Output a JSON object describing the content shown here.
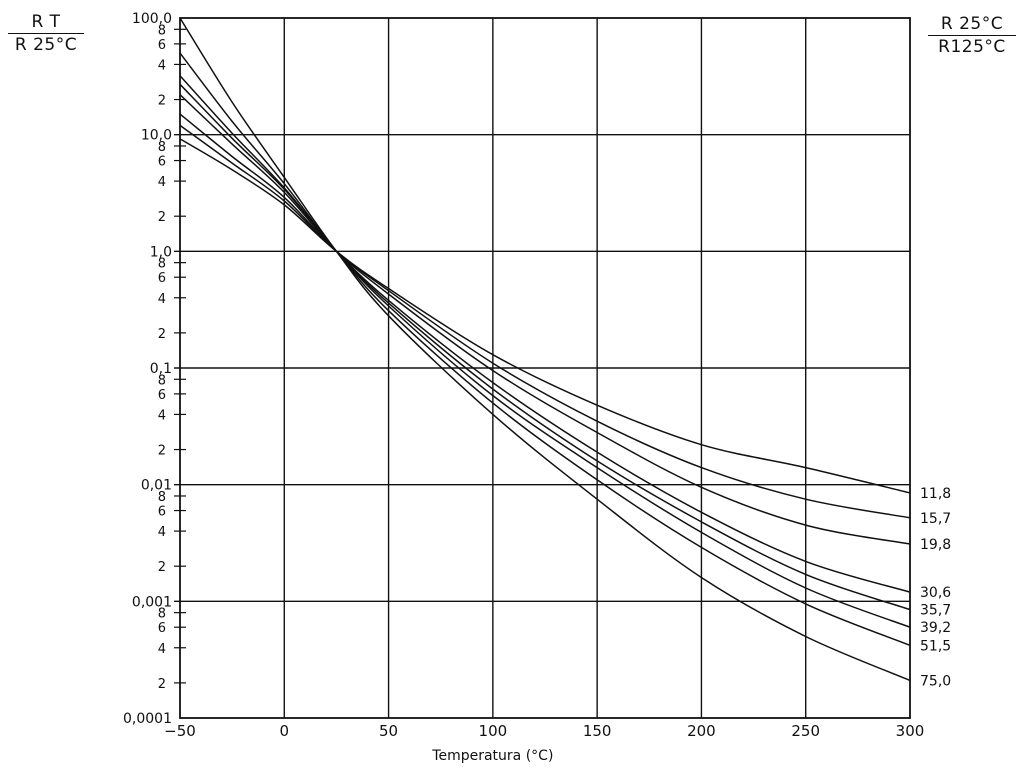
{
  "chart_data": {
    "type": "line",
    "xlabel": "Temperatura (°C)",
    "x_ticks": [
      -50,
      0,
      50,
      100,
      150,
      200,
      250,
      300
    ],
    "x_tick_labels": [
      "−50",
      "0",
      "50",
      "100",
      "150",
      "200",
      "250",
      "300"
    ],
    "xlim": [
      -50,
      300
    ],
    "ylim": [
      0.0001,
      100
    ],
    "y_scale": "log",
    "y_decade_labels": [
      {
        "value": 100,
        "label": "100,0"
      },
      {
        "value": 10,
        "label": "10,0"
      },
      {
        "value": 1,
        "label": "1,0"
      },
      {
        "value": 0.1,
        "label": "0,1"
      },
      {
        "value": 0.01,
        "label": "0,01"
      },
      {
        "value": 0.001,
        "label": "0,001"
      },
      {
        "value": 0.0001,
        "label": "0,0001"
      }
    ],
    "y_minor_labels": [
      "8",
      "6",
      "4",
      "2"
    ],
    "y_minor_values": [
      8,
      6,
      4,
      2
    ],
    "left_axis_title": {
      "numerator": "R T",
      "denominator": "R 25°C"
    },
    "right_axis_title": {
      "numerator": "R 25°C",
      "denominator": "R125°C"
    },
    "grid": true,
    "series": [
      {
        "name": "11,8",
        "x": [
          -50,
          -25,
          0,
          25,
          50,
          100,
          150,
          200,
          250,
          300
        ],
        "y": [
          9.2,
          5.0,
          2.5,
          1.0,
          0.48,
          0.13,
          0.048,
          0.022,
          0.014,
          0.0085
        ]
      },
      {
        "name": "15,7",
        "x": [
          -50,
          -25,
          0,
          25,
          50,
          100,
          150,
          200,
          250,
          300
        ],
        "y": [
          12,
          5.7,
          2.7,
          1.0,
          0.46,
          0.11,
          0.035,
          0.014,
          0.0075,
          0.0052
        ]
      },
      {
        "name": "19,8",
        "x": [
          -50,
          -25,
          0,
          25,
          50,
          100,
          150,
          200,
          250,
          300
        ],
        "y": [
          15,
          6.5,
          2.9,
          1.0,
          0.43,
          0.095,
          0.028,
          0.0095,
          0.0045,
          0.0031
        ]
      },
      {
        "name": "30,6",
        "x": [
          -50,
          -25,
          0,
          25,
          50,
          100,
          150,
          200,
          250,
          300
        ],
        "y": [
          22,
          8.3,
          3.2,
          1.0,
          0.38,
          0.075,
          0.019,
          0.0058,
          0.0022,
          0.0012
        ]
      },
      {
        "name": "35,7",
        "x": [
          -50,
          -25,
          0,
          25,
          50,
          100,
          150,
          200,
          250,
          300
        ],
        "y": [
          27,
          9.3,
          3.4,
          1.0,
          0.36,
          0.066,
          0.016,
          0.0048,
          0.0017,
          0.00085
        ]
      },
      {
        "name": "39,2",
        "x": [
          -50,
          -25,
          0,
          25,
          50,
          100,
          150,
          200,
          250,
          300
        ],
        "y": [
          32,
          10.3,
          3.5,
          1.0,
          0.34,
          0.058,
          0.014,
          0.0039,
          0.0013,
          0.0006
        ]
      },
      {
        "name": "51,5",
        "x": [
          -50,
          -25,
          0,
          25,
          50,
          100,
          150,
          200,
          250,
          300
        ],
        "y": [
          50,
          13,
          3.8,
          1.0,
          0.31,
          0.05,
          0.011,
          0.0029,
          0.00095,
          0.00042
        ]
      },
      {
        "name": "75,0",
        "x": [
          -50,
          -25,
          0,
          25,
          50,
          100,
          150,
          200,
          250,
          300
        ],
        "y": [
          100,
          19,
          4.3,
          1.0,
          0.28,
          0.04,
          0.0075,
          0.0016,
          0.0005,
          0.00021
        ]
      }
    ]
  }
}
